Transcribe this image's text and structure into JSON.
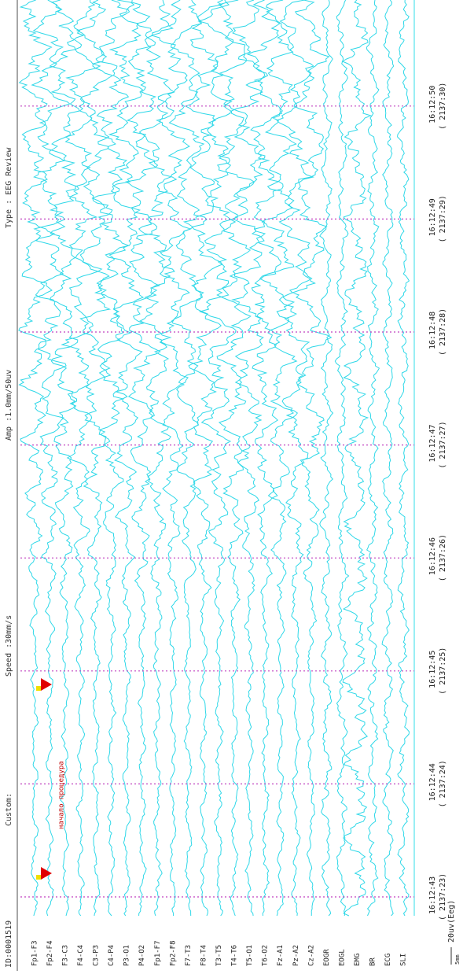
{
  "header": {
    "fields": [
      "ID:0001519",
      "Custom:",
      "Speed :30mm/s",
      "Amp :1.0mm/50uv",
      "Type : EEG Review"
    ]
  },
  "channels": [
    "Fp1-F3",
    "Fp2-F4",
    "F3-C3",
    "F4-C4",
    "C3-P3",
    "C4-P4",
    "P3-O1",
    "P4-O2",
    "Fp1-F7",
    "Fp2-F8",
    "F7-T3",
    "F8-T4",
    "T3-T5",
    "T4-T6",
    "T5-O1",
    "T6-O2",
    "Fz-A1",
    "Pz-A2",
    "Cz-A2",
    "EOGR",
    "EOGL",
    "EMG",
    "BR",
    "ECG",
    "SLI"
  ],
  "timestamps": [
    {
      "time": "16:12:43",
      "index": "( 2137:23)"
    },
    {
      "time": "16:12:44",
      "index": "( 2137:24)"
    },
    {
      "time": "16:12:45",
      "index": "( 2137:25)"
    },
    {
      "time": "16:12:46",
      "index": "( 2137:26)"
    },
    {
      "time": "16:12:47",
      "index": "( 2137:27)"
    },
    {
      "time": "16:12:48",
      "index": "( 2137:28)"
    },
    {
      "time": "16:12:49",
      "index": "( 2137:29)"
    },
    {
      "time": "16:12:50",
      "index": "( 2137:30)"
    }
  ],
  "annotation": "начало процедура",
  "scale": {
    "width": "5mm",
    "amplitude": "20uv(Eeg)"
  }
}
